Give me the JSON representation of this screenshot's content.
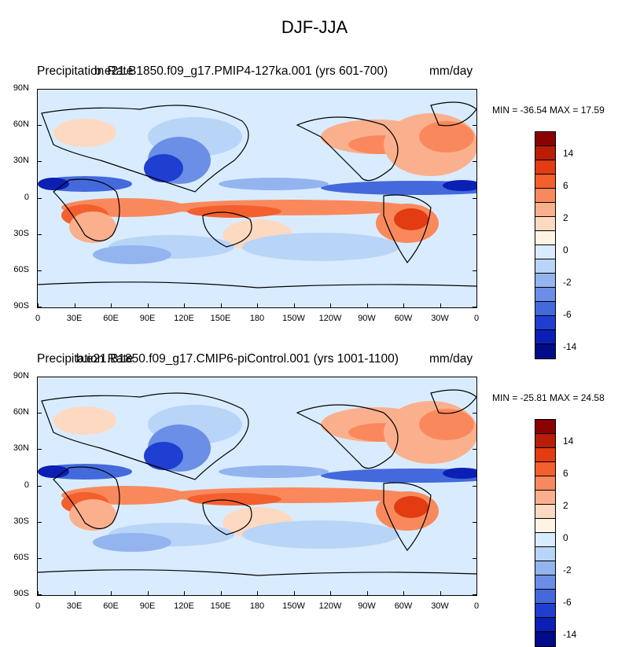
{
  "title": "DJF-JJA",
  "lat_labels": [
    "90N",
    "60N",
    "30N",
    "0",
    "30S",
    "60S",
    "90S"
  ],
  "lon_labels": [
    "0",
    "30E",
    "60E",
    "90E",
    "120E",
    "150E",
    "180",
    "150W",
    "120W",
    "90W",
    "60W",
    "30W",
    "0"
  ],
  "colorbar": {
    "colors": [
      "#8b0000",
      "#b81d05",
      "#e33b12",
      "#f45f2e",
      "#f9895c",
      "#fbb08d",
      "#fdd9c1",
      "#fff3e4",
      "#d9ecff",
      "#b8d4f7",
      "#93b4ef",
      "#6b8ee6",
      "#4369dc",
      "#1e3fcf",
      "#0b1fb4",
      "#000b8a"
    ],
    "labels": [
      "14",
      "6",
      "2",
      "0",
      "-2",
      "-6",
      "-14"
    ]
  },
  "panels": [
    {
      "left_title": "Precipitation Rate",
      "center_title": "b.e21.B1850.f09_g17.PMIP4-127ka.001 (yrs 601-700)",
      "units": "mm/day",
      "min_label": "MIN = -36.54",
      "max_label": "MAX =  17.59"
    },
    {
      "left_title": "Precipitation Rate",
      "center_title": "b.e21.B1850.f09_g17.CMIP6-piControl.001 (yrs 1001-1100)",
      "units": "mm/day",
      "min_label": "MIN = -25.81",
      "max_label": "MAX =  24.58"
    }
  ]
}
